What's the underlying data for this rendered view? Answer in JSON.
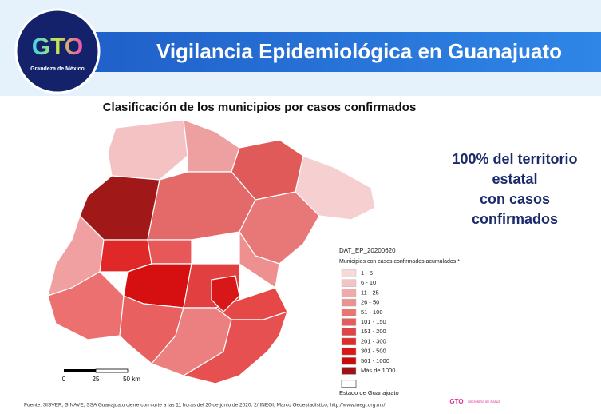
{
  "header": {
    "logo": "GTO",
    "logo_tagline": "Grandeza de México",
    "title": "Vigilancia Epidemiológica en Guanajuato"
  },
  "map": {
    "title": "Clasificación de los municipios por casos confirmados",
    "scale": [
      "0",
      "25",
      "50 km"
    ]
  },
  "callout": [
    "100% del territorio",
    "estatal",
    "con casos",
    "confirmados"
  ],
  "legend": {
    "code": "DAT_EP_20200620",
    "title": "Municipios con casos confirmados acumulados *",
    "items": [
      {
        "label": "1 - 5",
        "color": "#f7d9d9"
      },
      {
        "label": "6 - 10",
        "color": "#f4c4c4"
      },
      {
        "label": "11 - 25",
        "color": "#f0aaaa"
      },
      {
        "label": "26 - 50",
        "color": "#ec9090"
      },
      {
        "label": "51 - 100",
        "color": "#e87474"
      },
      {
        "label": "101 - 150",
        "color": "#e45c5c"
      },
      {
        "label": "151 - 200",
        "color": "#e04444"
      },
      {
        "label": "201 - 300",
        "color": "#dc2c2c"
      },
      {
        "label": "301 - 500",
        "color": "#d81818"
      },
      {
        "label": "501 - 1000",
        "color": "#c80c0c"
      },
      {
        "label": "Más de 1000",
        "color": "#9c1414"
      }
    ],
    "state": "Estado de Guanajuato"
  },
  "footer": {
    "source": "Fuente: SISVER, SINAVE, SSA Guanajuato cierre con corte a las 11 horas del 20 de junio de 2020. 2/ INEGI, Marco Geoestadístico, http://www.inegi.org.mx/",
    "logo": "GTO",
    "logo_text": "Secretaría de Salud"
  }
}
